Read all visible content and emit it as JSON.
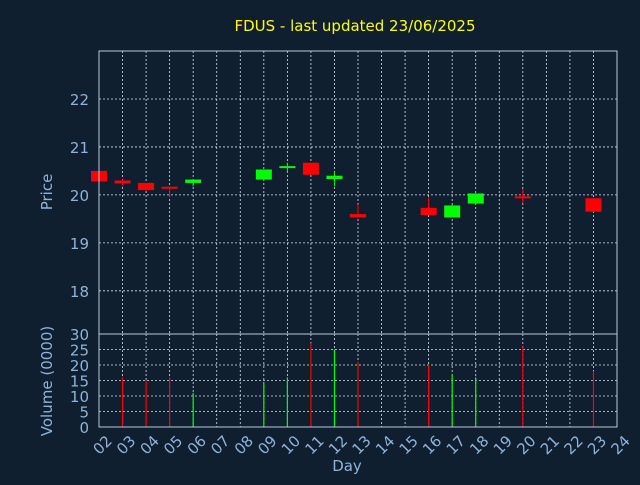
{
  "chart_data": {
    "type": "candlestick",
    "title": "FDUS - last updated 23/06/2025",
    "xlabel": "Day",
    "price_panel": {
      "ylabel": "Price",
      "ylim": [
        17.1,
        23.0
      ],
      "yticks": [
        "18",
        "19",
        "20",
        "21",
        "22"
      ],
      "ytick_values": [
        18,
        19,
        20,
        21,
        22
      ],
      "grid": true
    },
    "volume_panel": {
      "ylabel": "Volume (0000)",
      "ylim": [
        0,
        30
      ],
      "yticks": [
        "0",
        "5",
        "10",
        "15",
        "20",
        "25",
        "30"
      ],
      "ytick_values": [
        0,
        5,
        10,
        15,
        20,
        25,
        30
      ],
      "grid": true
    },
    "x_ticks": [
      "02",
      "03",
      "04",
      "05",
      "06",
      "07",
      "08",
      "09",
      "10",
      "11",
      "12",
      "13",
      "14",
      "15",
      "16",
      "17",
      "18",
      "19",
      "20",
      "21",
      "22",
      "23",
      "24"
    ],
    "x_tick_values": [
      2,
      3,
      4,
      5,
      6,
      7,
      8,
      9,
      10,
      11,
      12,
      13,
      14,
      15,
      16,
      17,
      18,
      19,
      20,
      21,
      22,
      23,
      24
    ],
    "series": [
      {
        "day": 2,
        "open": 20.5,
        "high": 20.5,
        "low": 20.25,
        "close": 20.28,
        "volume": 0
      },
      {
        "day": 3,
        "open": 20.3,
        "high": 20.32,
        "low": 20.2,
        "close": 20.24,
        "volume": 16
      },
      {
        "day": 4,
        "open": 20.25,
        "high": 20.25,
        "low": 20.08,
        "close": 20.1,
        "volume": 15
      },
      {
        "day": 5,
        "open": 20.17,
        "high": 20.17,
        "low": 19.95,
        "close": 20.15,
        "volume": 16
      },
      {
        "day": 6,
        "open": 20.25,
        "high": 20.33,
        "low": 20.18,
        "close": 20.32,
        "volume": 11
      },
      {
        "day": 9,
        "open": 20.32,
        "high": 20.53,
        "low": 20.3,
        "close": 20.53,
        "volume": 14
      },
      {
        "day": 10,
        "open": 20.57,
        "high": 20.67,
        "low": 20.47,
        "close": 20.6,
        "volume": 16
      },
      {
        "day": 11,
        "open": 20.67,
        "high": 20.67,
        "low": 20.42,
        "close": 20.42,
        "volume": 27
      },
      {
        "day": 12,
        "open": 20.33,
        "high": 20.47,
        "low": 20.18,
        "close": 20.4,
        "volume": 25
      },
      {
        "day": 13,
        "open": 19.6,
        "high": 19.8,
        "low": 19.53,
        "close": 19.53,
        "volume": 21
      },
      {
        "day": 16,
        "open": 19.73,
        "high": 19.95,
        "low": 19.58,
        "close": 19.58,
        "volume": 20
      },
      {
        "day": 17,
        "open": 19.53,
        "high": 19.8,
        "low": 19.53,
        "close": 19.78,
        "volume": 17
      },
      {
        "day": 18,
        "open": 19.82,
        "high": 20.03,
        "low": 19.8,
        "close": 20.03,
        "volume": 16
      },
      {
        "day": 20,
        "open": 19.97,
        "high": 20.12,
        "low": 19.83,
        "close": 19.95,
        "volume": 26
      },
      {
        "day": 23,
        "open": 19.93,
        "high": 19.93,
        "low": 19.65,
        "close": 19.65,
        "volume": 18
      }
    ],
    "colors": {
      "background": "#0f1f30",
      "up": "#00ff00",
      "down": "#ff0000",
      "title": "#ffff00",
      "axis_text": "#8fb3d9",
      "frame": "#b8c8d8",
      "grid": "#d8e0e8"
    }
  }
}
